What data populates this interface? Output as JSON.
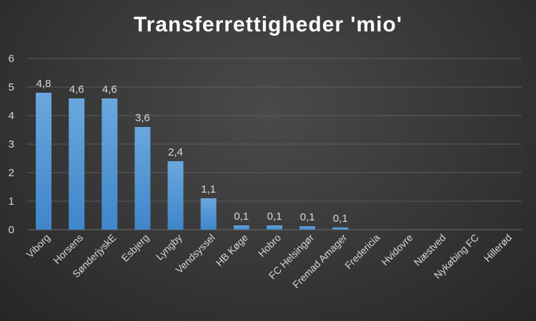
{
  "chart_data": {
    "type": "bar",
    "title": "Transferrettigheder 'mio'",
    "categories": [
      "Viborg",
      "Horsens",
      "SønderjyskE",
      "Esbjerg",
      "Lyngby",
      "Vendsyssel",
      "HB Køge",
      "Hobro",
      "FC Helsingør",
      "Fremad Amager",
      "Fredericia",
      "Hvidovre",
      "Næstved",
      "Nykøbing FC",
      "Hillerød"
    ],
    "values": [
      4.8,
      4.6,
      4.6,
      3.6,
      2.4,
      1.1,
      0.15,
      0.15,
      0.12,
      0.08,
      0,
      0,
      0,
      0,
      0
    ],
    "data_labels": [
      "4,8",
      "4,6",
      "4,6",
      "3,6",
      "2,4",
      "1,1",
      "0,1",
      "0,1",
      "0,1",
      "0,1",
      "",
      "",
      "",
      "",
      ""
    ],
    "yticks": [
      "0",
      "1",
      "2",
      "3",
      "4",
      "5",
      "6"
    ],
    "ylim": [
      0,
      6
    ],
    "xlabel": "",
    "ylabel": "",
    "grid": true,
    "bar_color": "#5b9bd5"
  }
}
